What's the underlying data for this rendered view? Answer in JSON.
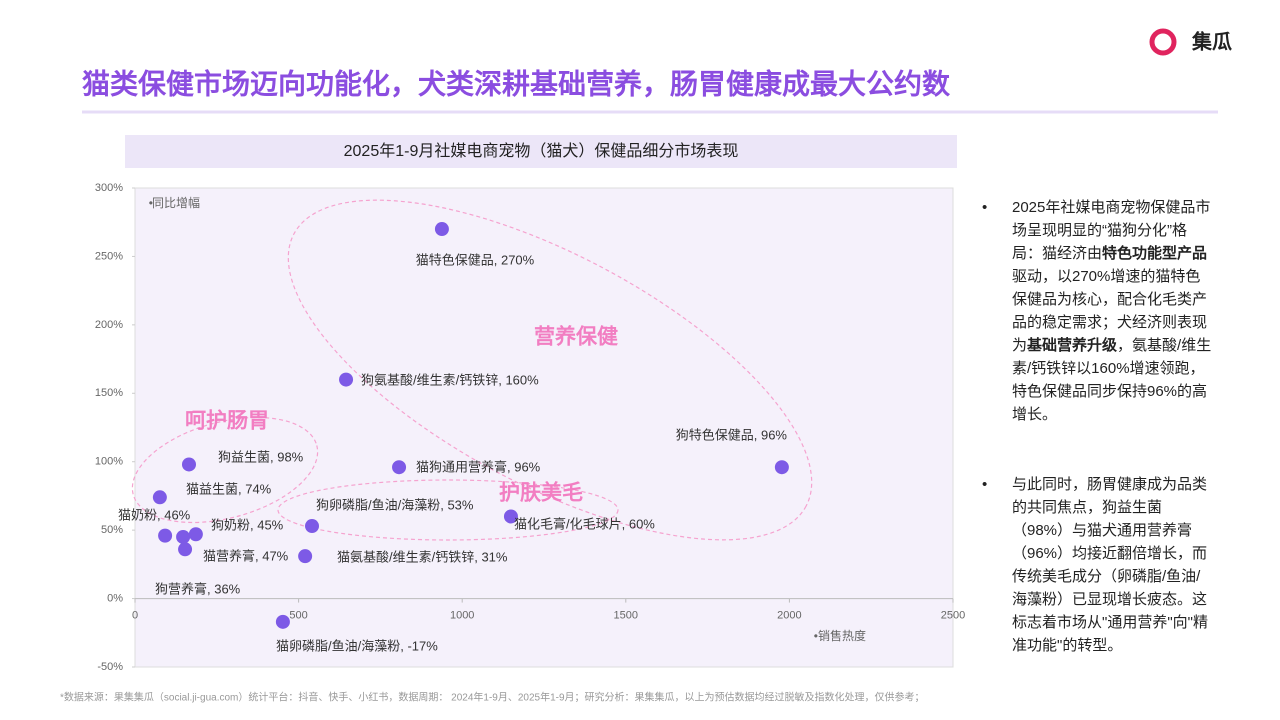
{
  "header": {
    "title": "猫类保健市场迈向功能化，犬类深耕基础营养，肠胃健康成最大公约数",
    "brand": "集瓜"
  },
  "chart_data": {
    "type": "scatter",
    "title": "2025年1-9月社媒电商宠物（猫犬）保健品细分市场表现",
    "xlabel": "销售热度",
    "ylabel": "同比增幅",
    "xlim": [
      0,
      2500
    ],
    "xticks": [
      0,
      500,
      1000,
      1500,
      2000,
      2500
    ],
    "ylim": [
      -50,
      300
    ],
    "yticks": [
      {
        "value": -50,
        "label": "-50%"
      },
      {
        "value": 0,
        "label": "0%"
      },
      {
        "value": 50,
        "label": "50%"
      },
      {
        "value": 100,
        "label": "100%"
      },
      {
        "value": 150,
        "label": "150%"
      },
      {
        "value": 200,
        "label": "200%"
      },
      {
        "value": 250,
        "label": "250%"
      },
      {
        "value": 300,
        "label": "300%"
      }
    ],
    "grid": false,
    "color": "#7d5ae6",
    "x": [
      938,
      645,
      1977,
      165,
      807,
      76,
      92,
      147,
      541,
      1149,
      186,
      153,
      520,
      452
    ],
    "values": [
      270,
      160,
      96,
      98,
      96,
      74,
      46,
      45,
      53,
      60,
      47,
      36,
      31,
      -17
    ],
    "value_labels": [
      "猫特色保健品, 270%",
      "狗氨基酸/维生素/钙铁锌, 160%",
      "狗特色保健品, 96%",
      "狗益生菌, 98%",
      "猫狗通用营养膏, 96%",
      "猫益生菌, 74%",
      "猫奶粉, 46%",
      "狗奶粉, 45%",
      "狗卵磷脂/鱼油/海藻粉, 53%",
      "猫化毛膏/化毛球片, 60%",
      "猫营养膏, 47%",
      "狗营养膏, 36%",
      "猫氨基酸/维生素/钙铁锌, 31%",
      "猫卵磷脂/鱼油/海藻粉, -17%"
    ],
    "annotations": [
      "营养保健",
      "呵护肠胃",
      "护肤美毛"
    ]
  },
  "notes": [
    [
      "2025年社媒电商宠物保健品市场呈现明显的“猫狗分化”格局：猫经济由",
      "特色功能型产品",
      "驱动，以270%增速的猫特色保健品为核心，配合化毛类产品的稳定需求；犬经济则表现为",
      "基础营养升级",
      "，氨基酸/维生素/钙铁锌以160%增速领跑，特色保健品同步保持96%的高增长。"
    ],
    [
      "与此同时，肠胃健康成为品类的共同焦点，狗益生菌（98%）与猫犬通用营养膏（96%）均接近翻倍增长，而传统美毛成分（卵磷脂/鱼油/海藻粉）已显现增长疲态。这标志着市场从\"通用营养\"向\"精准功能\"的转型。"
    ]
  ],
  "footer": "*数据来源：果集集瓜（social.ji-gua.com）统计平台：抖音、快手、小红书，数据周期： 2024年1-9月、2025年1-9月；研究分析：果集集瓜，以上为预估数据均经过脱敏及指数化处理，仅供参考；"
}
